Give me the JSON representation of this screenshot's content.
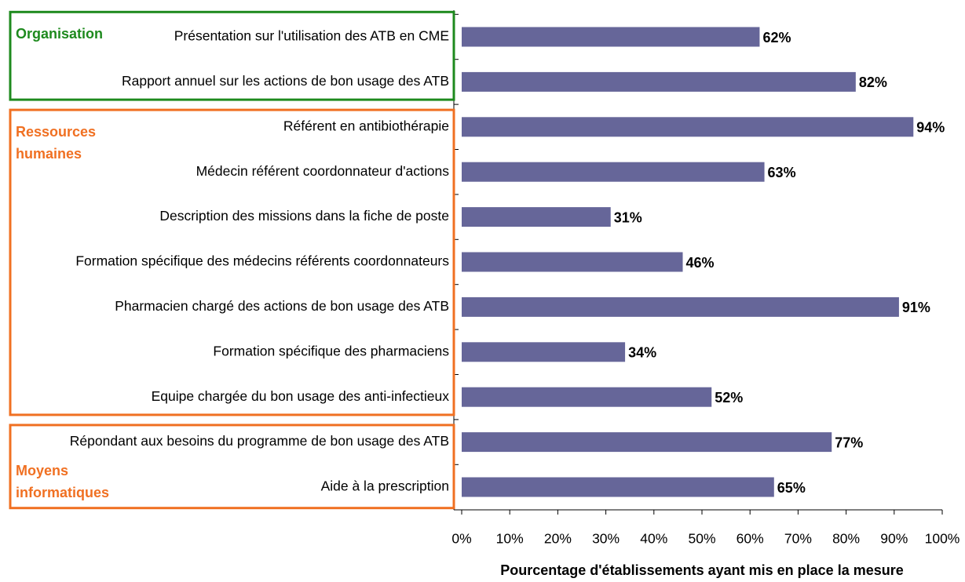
{
  "chart_data": {
    "type": "bar",
    "orientation": "horizontal",
    "color": "#666699",
    "xlabel": "Pourcentage d'établissements ayant mis en place la mesure",
    "xlim": [
      0,
      100
    ],
    "xticks": [
      {
        "value": 0,
        "label": "0%"
      },
      {
        "value": 10,
        "label": "10%"
      },
      {
        "value": 20,
        "label": "20%"
      },
      {
        "value": 30,
        "label": "30%"
      },
      {
        "value": 40,
        "label": "40%"
      },
      {
        "value": 50,
        "label": "50%"
      },
      {
        "value": 60,
        "label": "60%"
      },
      {
        "value": 70,
        "label": "70%"
      },
      {
        "value": 80,
        "label": "80%"
      },
      {
        "value": 90,
        "label": "90%"
      },
      {
        "value": 100,
        "label": "100%"
      }
    ],
    "groups": [
      {
        "name": "Organisation",
        "color": "#1e8a1e",
        "categories": [
          "Présentation sur l'utilisation des ATB en CME",
          "Rapport annuel sur les actions de bon usage des ATB"
        ],
        "values": [
          62,
          82
        ],
        "value_labels": [
          "62%",
          "82%"
        ]
      },
      {
        "name": "Ressources humaines",
        "color": "#f07022",
        "categories": [
          "Référent en antibiothérapie",
          "Médecin référent coordonnateur d'actions",
          "Description des missions dans la fiche de poste",
          "Formation spécifique des médecins référents coordonnateurs",
          "Pharmacien chargé des actions de bon usage des ATB",
          "Formation spécifique des pharmaciens",
          "Equipe chargée du bon usage des anti-infectieux"
        ],
        "values": [
          94,
          63,
          31,
          46,
          91,
          34,
          52
        ],
        "value_labels": [
          "94%",
          "63%",
          "31%",
          "46%",
          "91%",
          "34%",
          "52%"
        ]
      },
      {
        "name": "Moyens informatiques",
        "color": "#f07022",
        "categories": [
          "Répondant aux besoins du programme de bon usage des ATB",
          "Aide à la prescription"
        ],
        "values": [
          77,
          65
        ],
        "value_labels": [
          "77%",
          "65%"
        ]
      }
    ]
  }
}
